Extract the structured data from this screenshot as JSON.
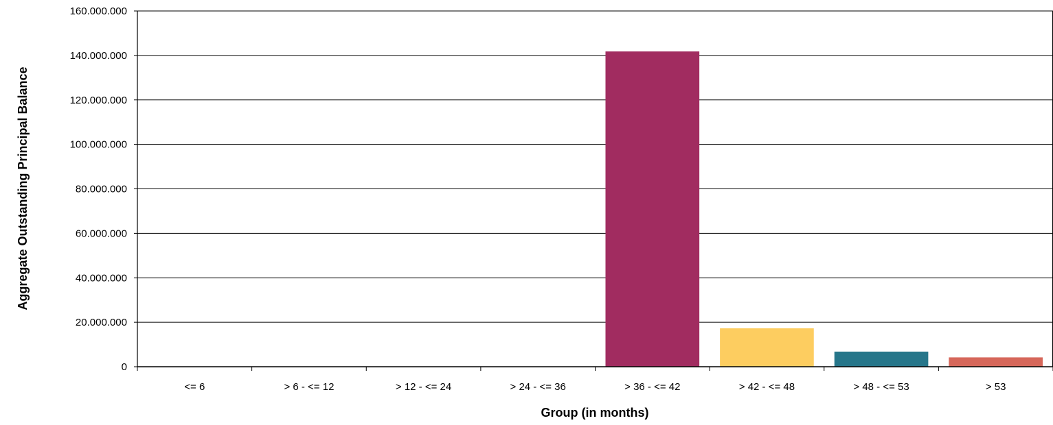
{
  "chart_data": {
    "type": "bar",
    "title": "",
    "xlabel": "Group (in months)",
    "ylabel": "Aggregate Outstanding Principal Balance",
    "categories": [
      "<= 6",
      "> 6 - <= 12",
      "> 12 - <= 24",
      "> 24 - <= 36",
      "> 36 - <= 42",
      "> 42 - <= 48",
      "> 48 - <= 53",
      "> 53"
    ],
    "values": [
      0,
      0,
      0,
      0,
      141800000,
      17300000,
      6800000,
      4200000
    ],
    "colors": [
      "#a12c60",
      "#a12c60",
      "#a12c60",
      "#a12c60",
      "#a12c60",
      "#fdcd60",
      "#26768a",
      "#d6675a"
    ],
    "ylim": [
      0,
      160000000
    ],
    "yticks": [
      0,
      20000000,
      40000000,
      60000000,
      80000000,
      100000000,
      120000000,
      140000000,
      160000000
    ],
    "ytick_labels": [
      "0",
      "20.000.000",
      "40.000.000",
      "60.000.000",
      "80.000.000",
      "100.000.000",
      "120.000.000",
      "140.000.000",
      "160.000.000"
    ],
    "grid": true,
    "legend": "none"
  }
}
